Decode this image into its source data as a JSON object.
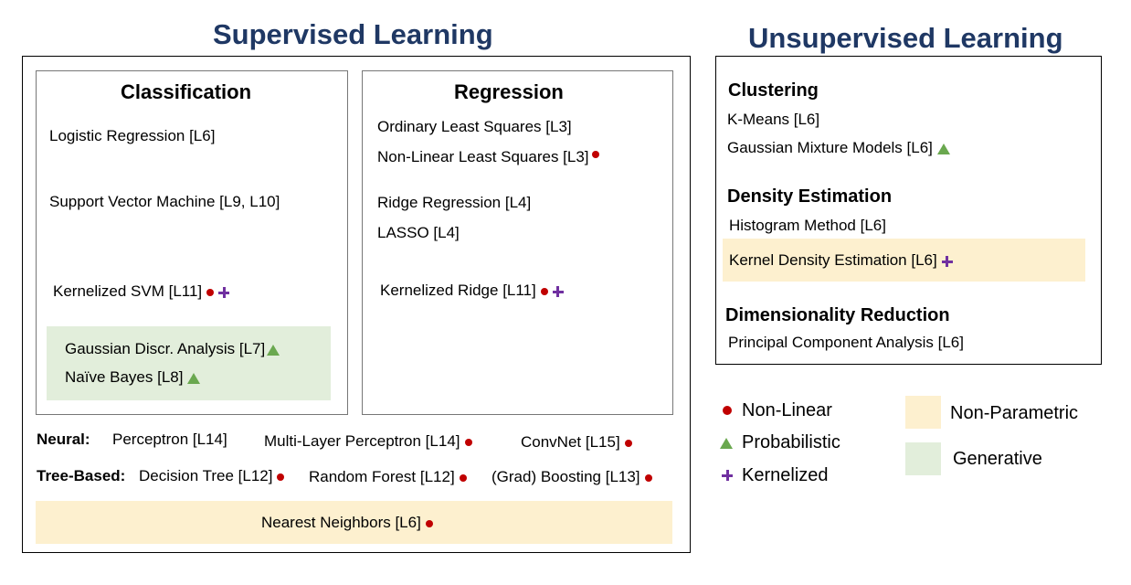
{
  "supervised": {
    "title": "Supervised Learning",
    "classification": {
      "heading": "Classification",
      "logistic": "Logistic Regression [L6]",
      "svm": "Support Vector Machine [L9, L10]",
      "kernel_svm": "Kernelized SVM [L11]",
      "gda": "Gaussian Discr. Analysis [L7]",
      "naive_bayes": "Naïve Bayes [L8]"
    },
    "regression": {
      "heading": "Regression",
      "ols": "Ordinary Least Squares [L3]",
      "nlls": "Non-Linear Least Squares [L3]",
      "ridge": "Ridge Regression [L4]",
      "lasso": "LASSO [L4]",
      "kernel_ridge": "Kernelized Ridge [L11]"
    },
    "neural": {
      "label": "Neural:",
      "perceptron": "Perceptron [L14]",
      "mlp": "Multi-Layer Perceptron [L14]",
      "convnet": "ConvNet [L15]"
    },
    "tree": {
      "label": "Tree-Based:",
      "decision_tree": "Decision Tree [L12]",
      "random_forest": "Random Forest [L12]",
      "boosting": "(Grad) Boosting [L13]"
    },
    "nearest_neighbors": "Nearest Neighbors [L6]"
  },
  "unsupervised": {
    "title": "Unsupervised Learning",
    "clustering": {
      "heading": "Clustering",
      "kmeans": "K-Means [L6]",
      "gmm": "Gaussian Mixture Models [L6]"
    },
    "density": {
      "heading": "Density Estimation",
      "histogram": "Histogram Method [L6]",
      "kde": "Kernel Density Estimation [L6]"
    },
    "dimred": {
      "heading": "Dimensionality Reduction",
      "pca": "Principal Component Analysis [L6]"
    }
  },
  "legend": {
    "non_linear": "Non-Linear",
    "probabilistic": "Probabilistic",
    "kernelized": "Kernelized",
    "non_parametric": "Non-Parametric",
    "generative": "Generative"
  },
  "colors": {
    "title": "#1f3864",
    "non_linear": "#c00000",
    "probabilistic": "#6aa84f",
    "kernelized": "#7030a0",
    "non_parametric_bg": "#fdf0cf",
    "generative_bg": "#e2eedb"
  }
}
